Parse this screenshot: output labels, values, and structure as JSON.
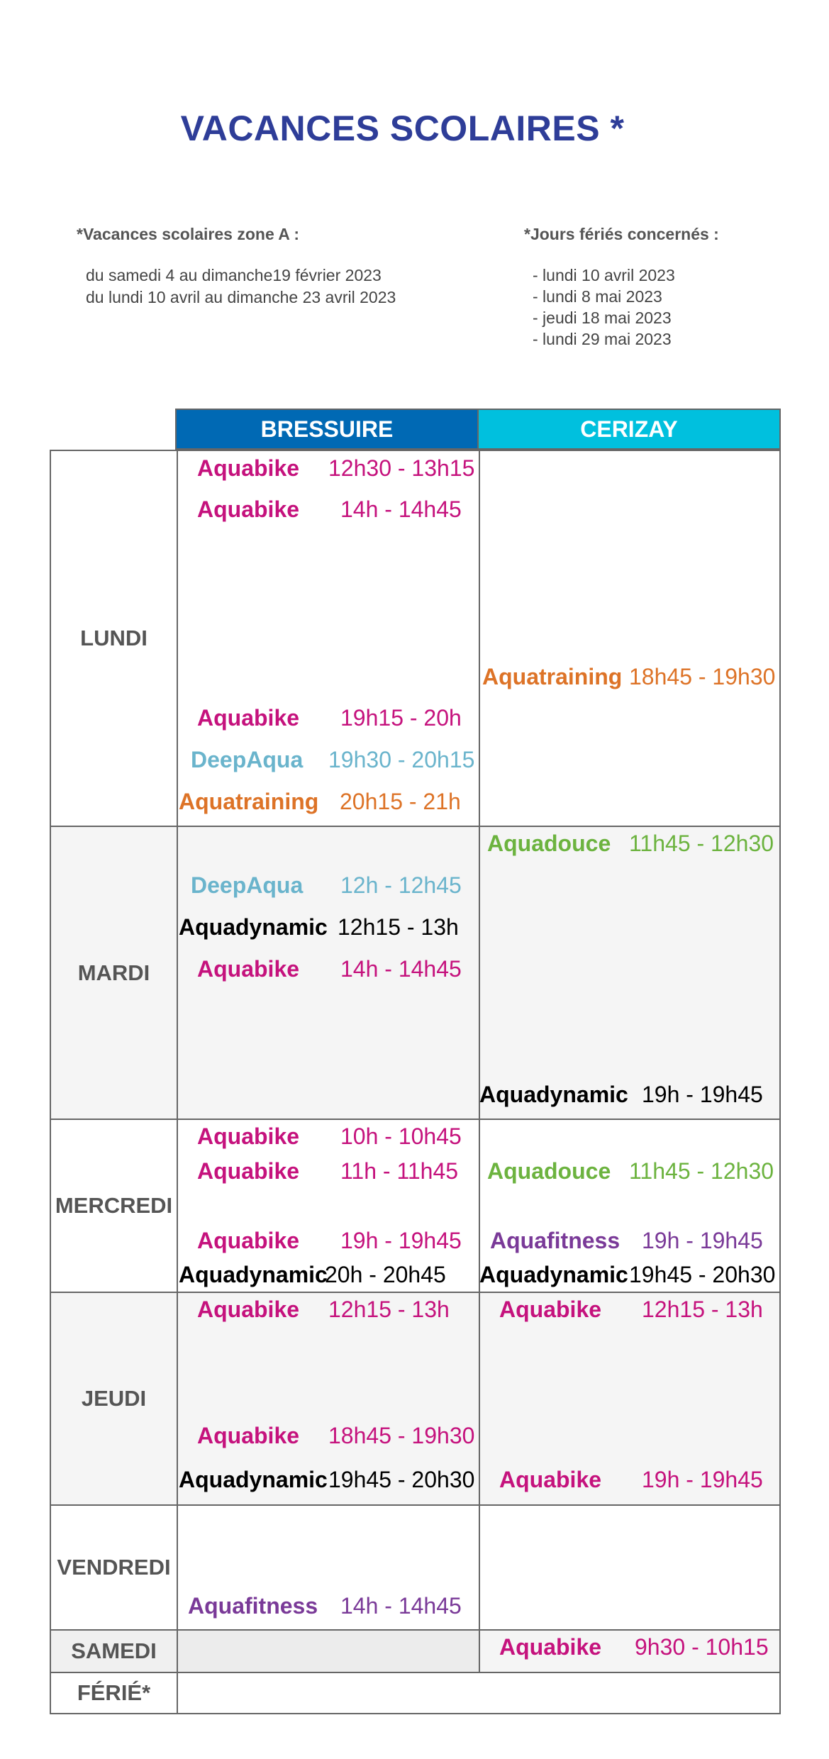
{
  "title": "VACANCES SCOLAIRES *",
  "notes": {
    "zone_heading": "*Vacances scolaires zone A :",
    "zone_lines": [
      "du samedi 4 au dimanche19 février 2023",
      "du lundi 10 avril au dimanche 23 avril 2023"
    ],
    "holidays_heading": "*Jours fériés concernés :",
    "holidays_lines": [
      "- lundi 10 avril 2023",
      "- lundi 8 mai 2023",
      "- jeudi 18 mai 2023",
      "- lundi 29 mai 2023"
    ]
  },
  "columns": {
    "bressuire": "BRESSUIRE",
    "cerizay": "CERIZAY"
  },
  "colors": {
    "aquabike": "#c5127d",
    "deepaqua": "#6ab4cc",
    "aquatraining": "#dd7327",
    "aquadynamic": "#000000",
    "aquadouce": "#6cb33f",
    "aquafitness": "#7a3a98",
    "header_bressuire": "#0069b4",
    "header_cerizay": "#00c0de",
    "title": "#2e3d98"
  },
  "days": {
    "lundi": "LUNDI",
    "mardi": "MARDI",
    "mercredi": "MERCREDI",
    "jeudi": "JEUDI",
    "vendredi": "VENDREDI",
    "samedi": "SAMEDI",
    "ferie": "FÉRIÉ*"
  },
  "schedule": {
    "lundi": {
      "bressuire": [
        {
          "activity": "Aquabike",
          "time": "12h30 - 13h15"
        },
        {
          "activity": "Aquabike",
          "time": "14h - 14h45"
        },
        {
          "activity": "Aquabike",
          "time": "19h15 - 20h"
        },
        {
          "activity": "DeepAqua",
          "time": "19h30 - 20h15"
        },
        {
          "activity": "Aquatraining",
          "time": "20h15 - 21h"
        }
      ],
      "cerizay": [
        {
          "activity": "Aquatraining",
          "time": "18h45 - 19h30"
        }
      ]
    },
    "mardi": {
      "bressuire": [
        {
          "activity": "DeepAqua",
          "time": "12h - 12h45"
        },
        {
          "activity": "Aquadynamic",
          "time": "12h15 - 13h"
        },
        {
          "activity": "Aquabike",
          "time": "14h - 14h45"
        }
      ],
      "cerizay": [
        {
          "activity": "Aquadouce",
          "time": "11h45 - 12h30"
        },
        {
          "activity": "Aquadynamic",
          "time": "19h - 19h45"
        }
      ]
    },
    "mercredi": {
      "bressuire": [
        {
          "activity": "Aquabike",
          "time": "10h - 10h45"
        },
        {
          "activity": "Aquabike",
          "time": "11h - 11h45"
        },
        {
          "activity": "Aquabike",
          "time": "19h - 19h45"
        },
        {
          "activity": "Aquadynamic",
          "time": "20h - 20h45"
        }
      ],
      "cerizay": [
        {
          "activity": "Aquadouce",
          "time": "11h45 - 12h30"
        },
        {
          "activity": "Aquafitness",
          "time": "19h - 19h45"
        },
        {
          "activity": "Aquadynamic",
          "time": "19h45 - 20h30"
        }
      ]
    },
    "jeudi": {
      "bressuire": [
        {
          "activity": "Aquabike",
          "time": "12h15 - 13h"
        },
        {
          "activity": "Aquabike",
          "time": "18h45 - 19h30"
        },
        {
          "activity": "Aquadynamic",
          "time": "19h45 - 20h30"
        }
      ],
      "cerizay": [
        {
          "activity": "Aquabike",
          "time": "12h15 - 13h"
        },
        {
          "activity": "Aquabike",
          "time": "19h - 19h45"
        }
      ]
    },
    "vendredi": {
      "bressuire": [
        {
          "activity": "Aquafitness",
          "time": "14h - 14h45"
        }
      ],
      "cerizay": []
    },
    "samedi": {
      "bressuire": [],
      "cerizay": [
        {
          "activity": "Aquabike",
          "time": "9h30 - 10h15"
        }
      ]
    }
  }
}
